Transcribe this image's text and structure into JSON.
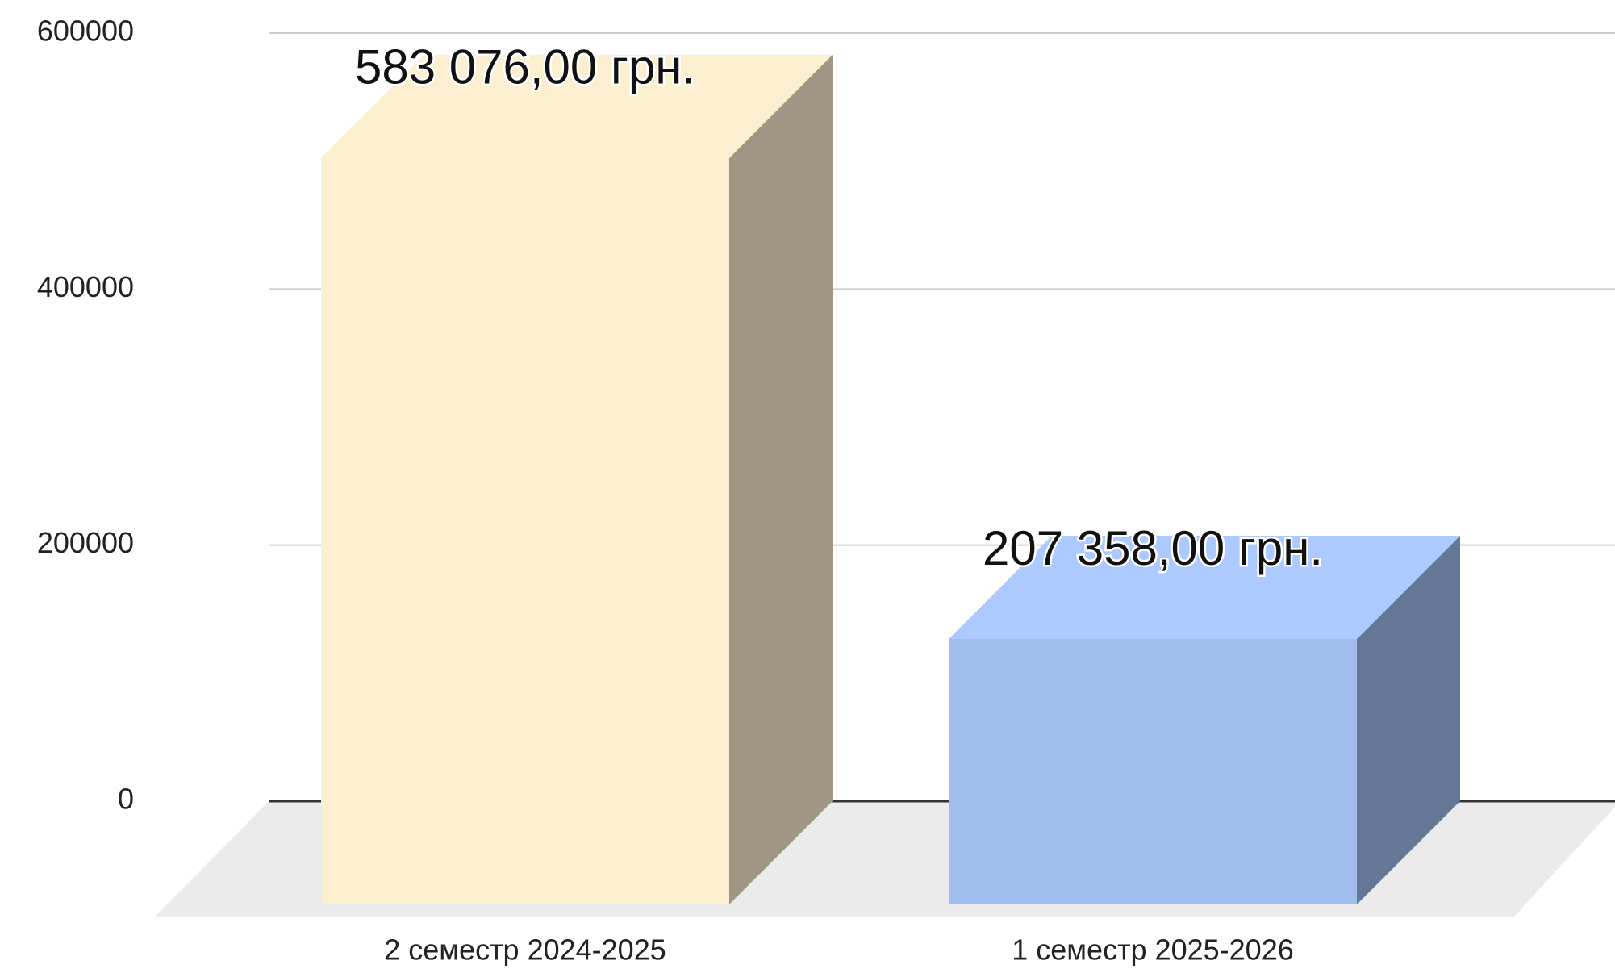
{
  "chart_data": {
    "type": "bar3d",
    "categories": [
      "2 семестр 2024-2025",
      "1 семестр 2025-2026"
    ],
    "values": [
      583076,
      207358
    ],
    "value_labels": [
      "583 076,00 грн.",
      "207 358,00 грн."
    ],
    "colors": [
      "#fcefd0",
      "#a1bdee"
    ],
    "ylim": [
      0,
      600000
    ],
    "yticks": [
      0,
      200000,
      400000,
      600000
    ],
    "grid": true
  }
}
